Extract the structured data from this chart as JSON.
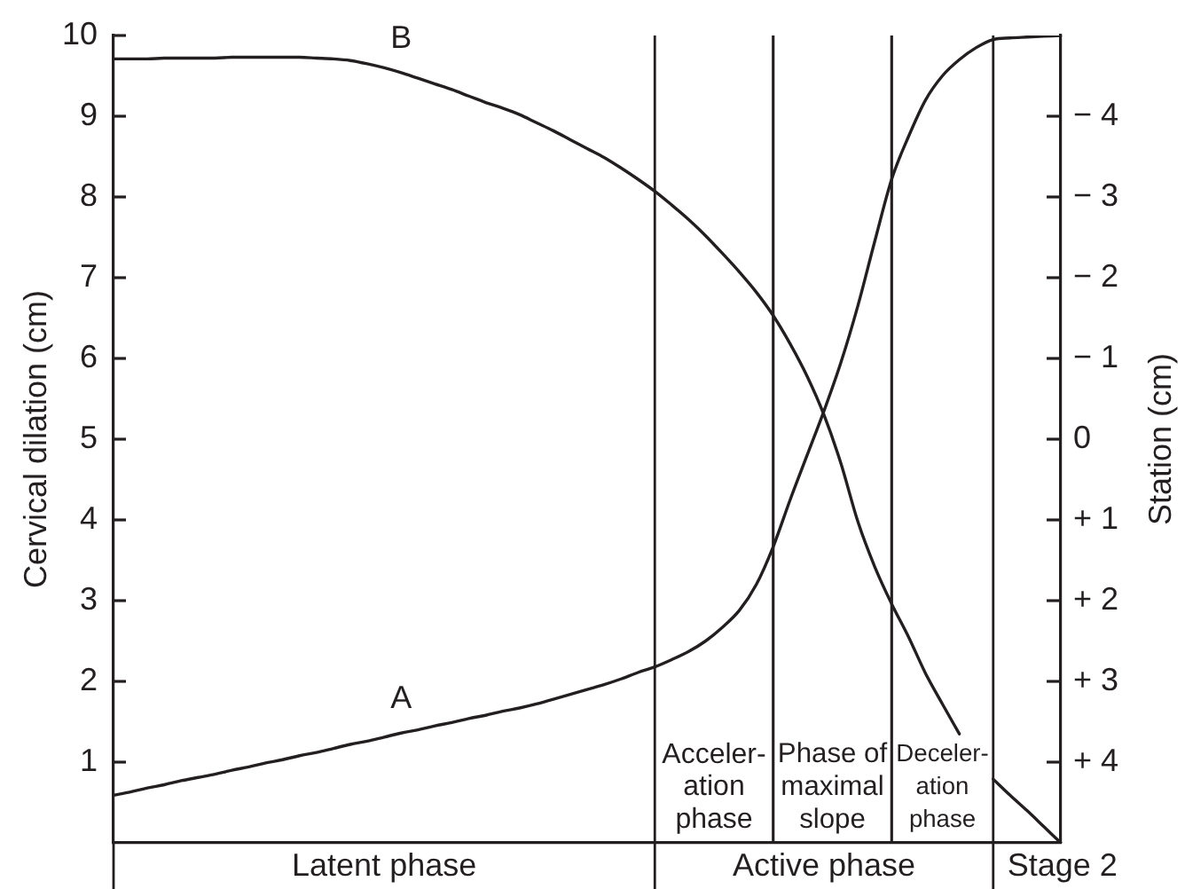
{
  "chart_data": {
    "type": "line",
    "ylabel": "Cervical dilation (cm)",
    "y2label": "Station (cm)",
    "categories": [
      null,
      null,
      null,
      null,
      null,
      null,
      null,
      null,
      null,
      null,
      null,
      null,
      null,
      null,
      null,
      null,
      null,
      null,
      null,
      null,
      null,
      null,
      null,
      null,
      null,
      null,
      null,
      null,
      null,
      null,
      null,
      null,
      null,
      null,
      null,
      null,
      null,
      null,
      null,
      null,
      null,
      null,
      null,
      null,
      null,
      null,
      null,
      null,
      null,
      null,
      null,
      null,
      null,
      null,
      null,
      null,
      null
    ],
    "series": [
      {
        "name": "A",
        "color": "#231f20",
        "values": [
          0.59,
          0.63,
          0.68,
          0.72,
          0.77,
          0.81,
          0.85,
          0.9,
          0.94,
          0.99,
          1.03,
          1.08,
          1.12,
          1.17,
          1.22,
          1.26,
          1.31,
          1.36,
          1.4,
          1.45,
          1.49,
          1.54,
          1.58,
          1.63,
          1.67,
          1.72,
          1.78,
          1.84,
          1.9,
          1.96,
          2.03,
          2.11,
          2.18,
          2.27,
          2.37,
          2.5,
          2.67,
          2.88,
          3.2,
          3.67,
          4.25,
          4.8,
          5.35,
          5.95,
          6.65,
          7.45,
          8.22,
          8.75,
          9.2,
          9.5,
          9.7,
          9.85,
          9.95,
          9.97,
          9.98,
          9.99,
          10
        ]
      },
      {
        "name": "B",
        "color": "#231f20",
        "axis": "y2",
        "values": [
          -4.71,
          -4.71,
          -4.71,
          -4.72,
          -4.72,
          -4.72,
          -4.72,
          -4.73,
          -4.73,
          -4.73,
          -4.73,
          -4.73,
          -4.72,
          -4.71,
          -4.69,
          -4.65,
          -4.6,
          -4.54,
          -4.47,
          -4.4,
          -4.33,
          -4.25,
          -4.17,
          -4.1,
          -4.02,
          -3.92,
          -3.82,
          -3.71,
          -3.6,
          -3.49,
          -3.36,
          -3.22,
          -3.07,
          -2.9,
          -2.72,
          -2.52,
          -2.3,
          -2.07,
          -1.82,
          -1.53,
          -1.18,
          -0.78,
          -0.3,
          0.3,
          1.02,
          1.58,
          2.04,
          2.45,
          2.9,
          3.28,
          3.65,
          null,
          4.21,
          4.41,
          4.6,
          4.8,
          5
        ]
      }
    ],
    "ylim": [
      0,
      10
    ],
    "yticks": [
      1,
      2,
      3,
      4,
      5,
      6,
      7,
      8,
      9,
      10
    ],
    "y2lim": [
      5,
      -5
    ],
    "y2ticks": [
      {
        "value": -4,
        "label": "− 4"
      },
      {
        "value": -3,
        "label": "− 3"
      },
      {
        "value": -2,
        "label": "− 2"
      },
      {
        "value": -1,
        "label": "− 1"
      },
      0,
      {
        "value": 1,
        "label": "+ 1"
      },
      {
        "value": 2,
        "label": "+ 2"
      },
      {
        "value": 3,
        "label": "+ 3"
      },
      {
        "value": 4,
        "label": "+ 4"
      }
    ],
    "annotations": [
      "Acceler-\nation\nphase",
      "Phase of\nmaximal\nslope",
      "Deceler-\nation\nphase",
      "Latent phase",
      "Active phase",
      "Stage 2"
    ],
    "grid": "x",
    "legend": false
  }
}
